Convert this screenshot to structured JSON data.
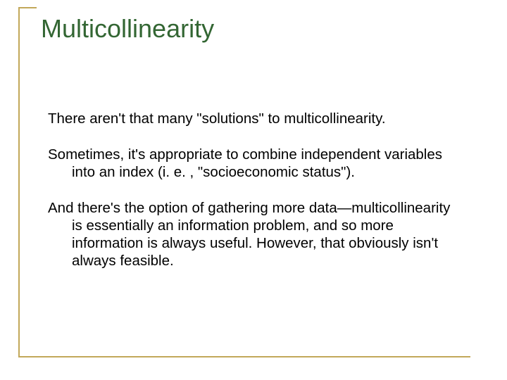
{
  "title": "Multicollinearity",
  "paragraphs": {
    "p1": "There aren't that many \"solutions\" to multicollinearity.",
    "p2": "Sometimes, it's appropriate to combine independent variables into an index (i. e. , \"socioeconomic status\").",
    "p3": "And there's the option of gathering more data—multicollinearity is essentially an information problem, and so more information is always useful.  However, that obviously isn't always feasible."
  },
  "colors": {
    "title_color": "#336633",
    "frame_color": "#c2a85a",
    "text_color": "#000000",
    "background": "#ffffff"
  },
  "typography": {
    "title_fontsize": 36,
    "body_fontsize": 20.5,
    "font_family": "Arial"
  }
}
